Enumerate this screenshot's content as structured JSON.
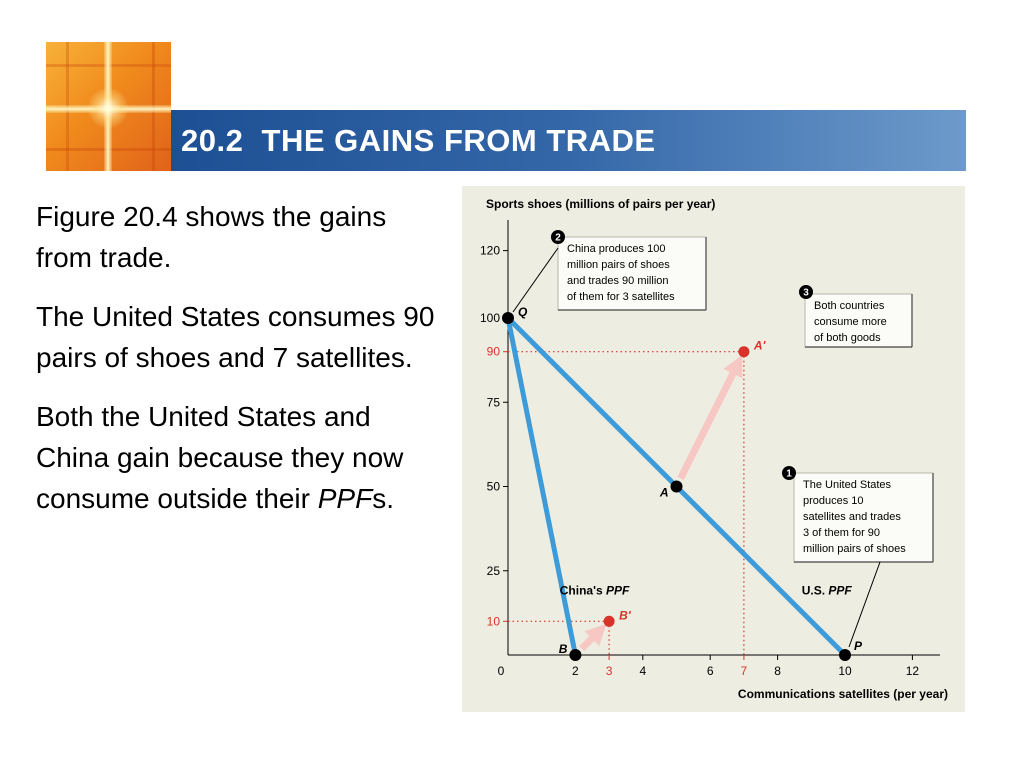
{
  "slide": {
    "title": "20.2  THE GAINS FROM TRADE",
    "paragraphs": [
      "Figure 20.4 shows the gains from trade.",
      "The United States consumes 90 pairs of shoes and 7 satellites.",
      "Both the United States and China gain because they now consume outside their "
    ],
    "ppf_italic": "PPF",
    "ppf_suffix": "s."
  },
  "colors": {
    "ppf_line": "#3d9bd9",
    "highlight": "#d7332b",
    "arrow": "#f7c7c3",
    "figure_bg": "#eeede1"
  },
  "chart_data": {
    "type": "line",
    "ylabel": "Sports shoes (millions of pairs per year)",
    "xlabel": "Communications satellites (per year)",
    "xlim": [
      0,
      12
    ],
    "ylim": [
      0,
      120
    ],
    "x_ticks": [
      0,
      2,
      4,
      6,
      8,
      10,
      12
    ],
    "y_ticks": [
      25,
      50,
      75,
      100,
      120
    ],
    "highlight_x_ticks": [
      3,
      7
    ],
    "highlight_y_ticks": [
      10,
      90
    ],
    "series": [
      {
        "name": "China's PPF",
        "name_prefix": "China's",
        "name_italic": "PPF",
        "points": [
          [
            0,
            100
          ],
          [
            2,
            0
          ]
        ]
      },
      {
        "name": "U.S. PPF",
        "name_prefix": "U.S.",
        "name_italic": "PPF",
        "points": [
          [
            0,
            100
          ],
          [
            10,
            0
          ]
        ]
      }
    ],
    "points": [
      {
        "label": "Q",
        "x": 0,
        "y": 100,
        "kind": "production"
      },
      {
        "label": "B",
        "x": 2,
        "y": 0,
        "kind": "production"
      },
      {
        "label": "A",
        "x": 5,
        "y": 50,
        "kind": "production"
      },
      {
        "label": "P",
        "x": 10,
        "y": 0,
        "kind": "production"
      },
      {
        "label": "A'",
        "x": 7,
        "y": 90,
        "kind": "consumption"
      },
      {
        "label": "B'",
        "x": 3,
        "y": 10,
        "kind": "consumption"
      }
    ],
    "arrows": [
      {
        "from": [
          5,
          50
        ],
        "to": [
          7,
          90
        ]
      },
      {
        "from": [
          2,
          0
        ],
        "to": [
          3,
          10
        ]
      }
    ],
    "annotations": [
      {
        "num": "1",
        "lines": [
          "The United States",
          "produces 10",
          "satellites and trades",
          "3 of them for 90",
          "million pairs of shoes"
        ]
      },
      {
        "num": "2",
        "lines": [
          "China produces 100",
          "million pairs of shoes",
          "and trades 90 million",
          "of them for 3 satellites"
        ]
      },
      {
        "num": "3",
        "lines": [
          "Both countries",
          "consume more",
          "of both goods"
        ]
      }
    ]
  }
}
